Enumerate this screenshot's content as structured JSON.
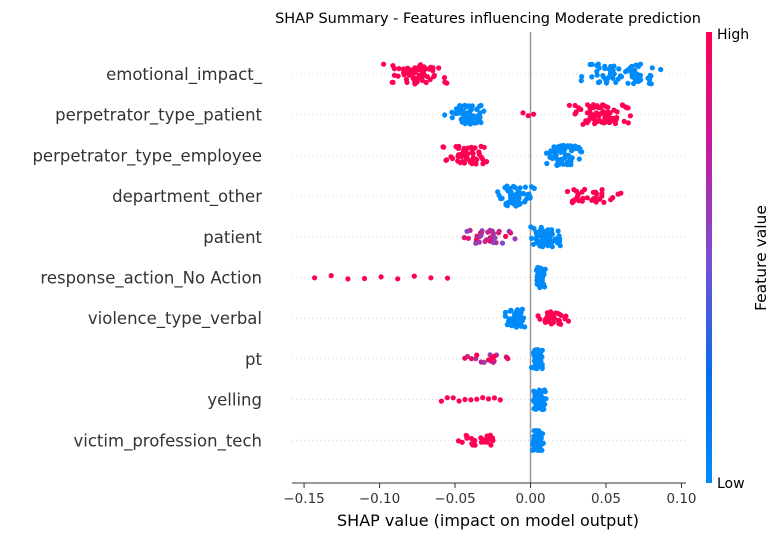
{
  "chart_data": {
    "type": "scatter",
    "subtype": "shap-beeswarm",
    "title": "SHAP Summary - Features influencing Moderate prediction",
    "xlabel": "SHAP value (impact on model output)",
    "xlim": [
      -0.158,
      0.103
    ],
    "xticks": [
      -0.15,
      -0.1,
      -0.05,
      0.0,
      0.05,
      0.1
    ],
    "xtick_labels": [
      "−0.15",
      "−0.10",
      "−0.05",
      "0.00",
      "0.05",
      "0.10"
    ],
    "colorbar": {
      "title": "Feature value",
      "high_label": "High",
      "low_label": "Low",
      "high_color": "#ff0052",
      "low_color": "#008bfb"
    },
    "features": [
      {
        "name": "emotional_impact_",
        "clusters": [
          {
            "from": -0.102,
            "to": -0.051,
            "n": 60,
            "c": 1
          },
          {
            "from": 0.03,
            "to": 0.091,
            "n": 75,
            "c": 0
          }
        ]
      },
      {
        "name": "perpetrator_type_patient",
        "clusters": [
          {
            "from": -0.06,
            "to": -0.025,
            "n": 55,
            "c": 0
          },
          {
            "from": -0.005,
            "to": 0.002,
            "n": 3,
            "c": 1
          },
          {
            "from": 0.022,
            "to": 0.075,
            "n": 75,
            "c": 1
          }
        ]
      },
      {
        "name": "perpetrator_type_employee",
        "clusters": [
          {
            "from": -0.068,
            "to": -0.02,
            "n": 55,
            "c": 1
          },
          {
            "from": 0.005,
            "to": 0.038,
            "n": 70,
            "c": 0
          }
        ]
      },
      {
        "name": "department_other",
        "clusters": [
          {
            "from": -0.027,
            "to": 0.005,
            "n": 70,
            "c": 0
          },
          {
            "from": 0.01,
            "to": 0.068,
            "n": 35,
            "c": 1
          }
        ]
      },
      {
        "name": "patient",
        "clusters": [
          {
            "from": -0.051,
            "to": -0.005,
            "n": 35,
            "c": 0.75
          },
          {
            "from": -0.005,
            "to": 0.025,
            "n": 65,
            "c": 0
          }
        ]
      },
      {
        "name": "response_action_No Action",
        "clusters": [
          {
            "from": -0.143,
            "to": -0.055,
            "n": 9,
            "c": 1
          },
          {
            "from": 0.002,
            "to": 0.011,
            "n": 60,
            "c": 0
          }
        ]
      },
      {
        "name": "violence_type_verbal",
        "clusters": [
          {
            "from": -0.018,
            "to": 0.0,
            "n": 55,
            "c": 0
          },
          {
            "from": 0.003,
            "to": 0.027,
            "n": 35,
            "c": 1
          }
        ]
      },
      {
        "name": "pt",
        "clusters": [
          {
            "from": -0.053,
            "to": -0.002,
            "n": 18,
            "c": 0.85
          },
          {
            "from": 0.0,
            "to": 0.01,
            "n": 60,
            "c": 0
          }
        ]
      },
      {
        "name": "yelling",
        "clusters": [
          {
            "from": -0.059,
            "to": -0.02,
            "n": 11,
            "c": 1
          },
          {
            "from": 0.0,
            "to": 0.012,
            "n": 70,
            "c": 0
          }
        ]
      },
      {
        "name": "victim_profession_tech",
        "clusters": [
          {
            "from": -0.059,
            "to": -0.005,
            "n": 25,
            "c": 1
          },
          {
            "from": 0.0,
            "to": 0.01,
            "n": 60,
            "c": 0
          }
        ]
      }
    ]
  }
}
